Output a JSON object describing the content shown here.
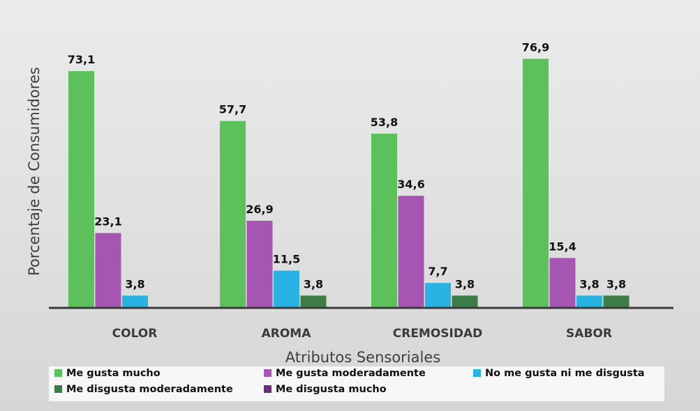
{
  "chart_data": {
    "type": "bar",
    "ylabel": "Porcentaje de Consumidores",
    "xlabel": "Atributos Sensoriales",
    "categories": [
      "COLOR",
      "AROMA",
      "CREMOSIDAD",
      "SABOR"
    ],
    "ylim": [
      0,
      80
    ],
    "grid": false,
    "legend_position": "bottom",
    "series": [
      {
        "name": "Me gusta mucho",
        "color": "#5cc05b",
        "values": [
          73.1,
          57.7,
          53.8,
          76.9
        ],
        "labels": [
          "73,1",
          "57,7",
          "53,8",
          "76,9"
        ]
      },
      {
        "name": "Me gusta moderadamente",
        "color": "#a755b3",
        "values": [
          23.1,
          26.9,
          34.6,
          15.4
        ],
        "labels": [
          "23,1",
          "26,9",
          "34,6",
          "15,4"
        ]
      },
      {
        "name": "No me gusta ni me disgusta",
        "color": "#27b3e3",
        "values": [
          3.8,
          11.5,
          7.7,
          3.8
        ],
        "labels": [
          "3,8",
          "11,5",
          "7,7",
          "3,8"
        ]
      },
      {
        "name": "Me disgusta moderadamente",
        "color": "#3b7d45",
        "values": [
          null,
          3.8,
          3.8,
          3.8
        ],
        "labels": [
          "",
          "3,8",
          "3,8",
          "3,8"
        ]
      },
      {
        "name": "Me disgusta mucho",
        "color": "#6a2f7a",
        "values": [
          null,
          null,
          null,
          null
        ],
        "labels": [
          "",
          "",
          "",
          ""
        ]
      }
    ]
  }
}
